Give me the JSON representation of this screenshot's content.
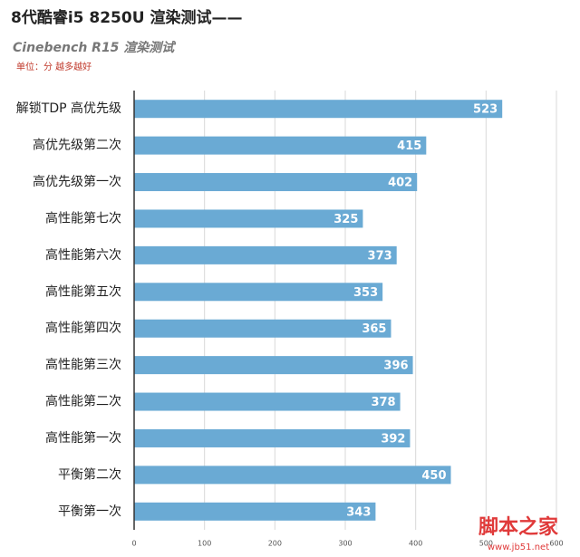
{
  "chart_data": {
    "type": "bar",
    "orientation": "horizontal",
    "title": "8代酷睿i5 8250U 渲染测试——",
    "subtitle": "Cinebench R15 渲染测试",
    "note": "单位：分 越多越好",
    "watermark": "脚本之家",
    "watermark_url": "www.jb51.net",
    "categories": [
      "解锁TDP 高优先级",
      "高优先级第二次",
      "高优先级第一次",
      "高性能第七次",
      "高性能第六次",
      "高性能第五次",
      "高性能第四次",
      "高性能第三次",
      "高性能第二次",
      "高性能第一次",
      "平衡第二次",
      "平衡第一次"
    ],
    "values": [
      523,
      415,
      402,
      325,
      373,
      353,
      365,
      396,
      378,
      392,
      450,
      343
    ],
    "color": "#6aaad4",
    "xlim": [
      0,
      600
    ],
    "xticks": [
      0,
      100,
      200,
      300,
      400,
      500,
      600
    ],
    "grid": true
  }
}
